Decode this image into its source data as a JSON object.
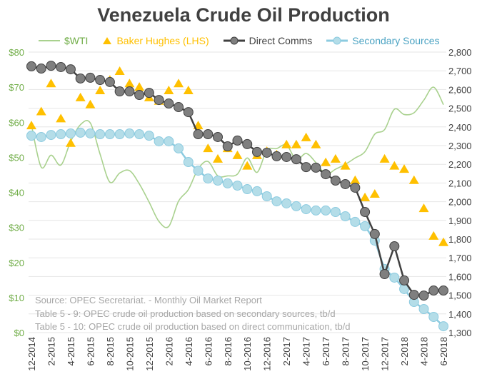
{
  "chart_data": {
    "type": "line",
    "title": "Venezuela Crude Oil Production",
    "legend_position": "top",
    "colors": {
      "wti": "#a9d18e",
      "baker": "#ffc000",
      "direct": "#595959",
      "direct_fill": "#7f7f7f",
      "secondary": "#6fb7cf",
      "secondary_fill": "#b4dde8",
      "left_axis": "#70ad47",
      "right_axis": "#404040",
      "grid": "#e6e6e6"
    },
    "legend": [
      "$WTI",
      "Baker Hughes (LHS)",
      "Direct Comms",
      "Secondary Sources"
    ],
    "left_axis": {
      "ylim": [
        0,
        80
      ],
      "ticks": [
        "$0",
        "$10",
        "$20",
        "$30",
        "$40",
        "$50",
        "$60",
        "$70",
        "$80"
      ]
    },
    "right_axis": {
      "ylim": [
        1300,
        2800
      ],
      "ticks": [
        "1,300",
        "1,400",
        "1,500",
        "1,600",
        "1,700",
        "1,800",
        "1,900",
        "2,000",
        "2,100",
        "2,200",
        "2,300",
        "2,400",
        "2,500",
        "2,600",
        "2,700",
        "2,800"
      ]
    },
    "x_tick_labels": [
      "12-2014",
      "2-2015",
      "4-2015",
      "6-2015",
      "8-2015",
      "10-2015",
      "12-2015",
      "2-2016",
      "4-2016",
      "6-2016",
      "8-2016",
      "10-2016",
      "12-2016",
      "2-2017",
      "4-2017",
      "6-2017",
      "8-2017",
      "10-2017",
      "12-2017",
      "2-2018",
      "4-2018",
      "6-2018"
    ],
    "months": 43,
    "series": [
      {
        "name": "$WTI",
        "axis": "left",
        "values": [
          59.3,
          47.2,
          50.6,
          47.8,
          54.5,
          59.3,
          59.8,
          50.9,
          42.9,
          45.5,
          46.2,
          42.4,
          37.2,
          31.7,
          30.3,
          37.5,
          40.8,
          46.7,
          48.8,
          44.7,
          44.7,
          45.2,
          49.8,
          45.7,
          52.0,
          52.5,
          53.5,
          49.3,
          51.1,
          48.5,
          45.2,
          46.6,
          48.0,
          49.8,
          51.6,
          56.6,
          57.9,
          63.7,
          62.2,
          62.7,
          66.3,
          70.0,
          65.0
        ]
      },
      {
        "name": "Baker Hughes (LHS)",
        "axis": "left",
        "values": [
          59,
          63,
          71,
          61,
          54,
          67,
          65,
          69,
          72,
          74.5,
          71,
          70,
          67,
          66,
          69,
          71,
          69,
          59,
          52.5,
          49.5,
          52.5,
          50.5,
          47.5,
          50.5,
          51.7,
          50.7,
          53.6,
          53.6,
          55.6,
          53.6,
          48.5,
          49.5,
          47.5,
          43.4,
          38.5,
          39.5,
          49.5,
          47.5,
          46.6,
          43.4,
          35.4,
          27.5,
          25.7
        ]
      },
      {
        "name": "Direct Comms",
        "axis": "right",
        "values": [
          2724,
          2712,
          2727,
          2720,
          2708,
          2659,
          2663,
          2651,
          2640,
          2590,
          2590,
          2571,
          2582,
          2544,
          2525,
          2506,
          2479,
          2361,
          2361,
          2346,
          2296,
          2327,
          2308,
          2266,
          2262,
          2243,
          2239,
          2227,
          2185,
          2182,
          2147,
          2113,
          2094,
          2075,
          1945,
          1827,
          1613,
          1762,
          1579,
          1502,
          1498,
          1525,
          1525
        ]
      },
      {
        "name": "Secondary Sources",
        "axis": "right",
        "values": [
          2353,
          2346,
          2357,
          2361,
          2365,
          2369,
          2365,
          2361,
          2361,
          2361,
          2365,
          2361,
          2353,
          2323,
          2323,
          2285,
          2212,
          2166,
          2124,
          2113,
          2098,
          2086,
          2067,
          2056,
          2029,
          2002,
          1991,
          1976,
          1960,
          1953,
          1953,
          1945,
          1922,
          1892,
          1869,
          1792,
          1640,
          1594,
          1533,
          1464,
          1426,
          1384,
          1334
        ]
      }
    ],
    "annotations": [
      "Source: OPEC Secretariat. - Monthly Oil Market Report",
      "Table 5 - 9: OPEC crude oil production based on secondary sources, tb/d",
      "Table 5 - 10: OPEC crude oil production based on direct communication, tb/d"
    ]
  }
}
